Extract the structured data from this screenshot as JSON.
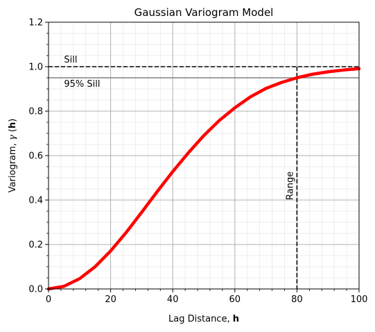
{
  "chart_data": {
    "type": "line",
    "title": "Gaussian Variogram Model",
    "xlabel": {
      "text": "Lag Distance, ",
      "bold": "h"
    },
    "ylabel": {
      "text": "Variogram, ",
      "symbol": "γ",
      "open": " (",
      "bold": "h",
      "close": ")"
    },
    "xlim": [
      0,
      100
    ],
    "ylim": [
      0,
      1.2
    ],
    "xticks": [
      0,
      20,
      40,
      60,
      80,
      100
    ],
    "yticks": [
      0.0,
      0.2,
      0.4,
      0.6,
      0.8,
      1.0,
      1.2
    ],
    "xtick_labels": [
      "0",
      "20",
      "40",
      "60",
      "80",
      "100"
    ],
    "ytick_labels": [
      "0.0",
      "0.2",
      "0.4",
      "0.6",
      "0.8",
      "1.0",
      "1.2"
    ],
    "grid": {
      "major": true,
      "minor": true
    },
    "series": [
      {
        "model": "gaussian",
        "sill": 1.0,
        "practical_range": 80,
        "color": "#ff0000",
        "x": [
          0,
          5,
          10,
          15,
          20,
          25,
          30,
          35,
          40,
          45,
          50,
          55,
          60,
          65,
          70,
          75,
          80,
          85,
          90,
          95,
          100
        ],
        "y": [
          0.0,
          0.012,
          0.046,
          0.1,
          0.171,
          0.254,
          0.345,
          0.438,
          0.528,
          0.612,
          0.69,
          0.758,
          0.815,
          0.864,
          0.902,
          0.929,
          0.95,
          0.966,
          0.977,
          0.985,
          0.991
        ]
      }
    ],
    "reference_lines": [
      {
        "orientation": "horizontal",
        "y": 1.0,
        "style": "dashed",
        "color": "#000000",
        "label": "Sill"
      },
      {
        "orientation": "horizontal",
        "y": 0.95,
        "style": "solid",
        "color": "#808080",
        "label": "95% Sill"
      },
      {
        "orientation": "vertical",
        "x": 80,
        "y_max": 1.0,
        "style": "dashed",
        "color": "#000000",
        "label": "Range"
      }
    ]
  }
}
